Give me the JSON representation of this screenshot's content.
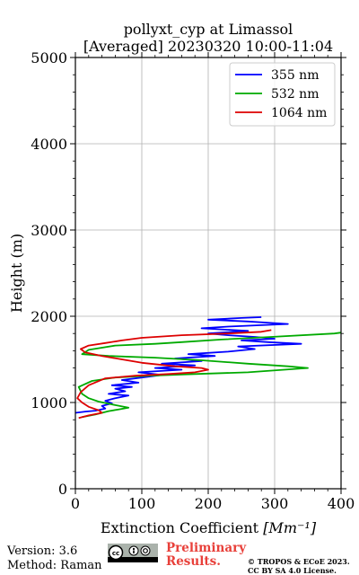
{
  "chart_data": {
    "type": "line",
    "title": "pollyxt_cyp at Limassol",
    "subtitle": "[Averaged] 20230320 10:00-11:04",
    "xlabel": "Extinction Coefficient",
    "xlabel_unit": "[Mm⁻¹]",
    "ylabel": "Height (m)",
    "xlim": [
      0,
      400
    ],
    "ylim": [
      0,
      5000
    ],
    "x_ticks": [
      "0",
      "100",
      "200",
      "300",
      "400"
    ],
    "y_ticks": [
      "0",
      "1000",
      "2000",
      "3000",
      "4000",
      "5000"
    ],
    "grid": true,
    "legend_position": "top-right",
    "series": [
      {
        "name": "355 nm",
        "color": "#0000ff",
        "points": [
          [
            0,
            880
          ],
          [
            15,
            895
          ],
          [
            30,
            905
          ],
          [
            45,
            930
          ],
          [
            40,
            960
          ],
          [
            55,
            990
          ],
          [
            45,
            1020
          ],
          [
            60,
            1050
          ],
          [
            80,
            1080
          ],
          [
            50,
            1100
          ],
          [
            75,
            1130
          ],
          [
            60,
            1160
          ],
          [
            85,
            1180
          ],
          [
            55,
            1200
          ],
          [
            95,
            1230
          ],
          [
            70,
            1260
          ],
          [
            100,
            1290
          ],
          [
            130,
            1320
          ],
          [
            95,
            1350
          ],
          [
            160,
            1380
          ],
          [
            120,
            1400
          ],
          [
            180,
            1430
          ],
          [
            130,
            1450
          ],
          [
            190,
            1480
          ],
          [
            150,
            1510
          ],
          [
            210,
            1540
          ],
          [
            170,
            1560
          ],
          [
            230,
            1590
          ],
          [
            270,
            1620
          ],
          [
            245,
            1650
          ],
          [
            340,
            1680
          ],
          [
            290,
            1700
          ],
          [
            250,
            1720
          ],
          [
            300,
            1740
          ],
          [
            270,
            1760
          ],
          [
            230,
            1780
          ],
          [
            200,
            1800
          ],
          [
            260,
            1830
          ],
          [
            190,
            1860
          ],
          [
            230,
            1880
          ],
          [
            320,
            1910
          ],
          [
            260,
            1940
          ],
          [
            200,
            1960
          ],
          [
            250,
            1980
          ],
          [
            280,
            1990
          ]
        ]
      },
      {
        "name": "532 nm",
        "color": "#00aa00",
        "points": [
          [
            10,
            830
          ],
          [
            30,
            860
          ],
          [
            50,
            900
          ],
          [
            65,
            920
          ],
          [
            80,
            940
          ],
          [
            60,
            970
          ],
          [
            35,
            1010
          ],
          [
            20,
            1050
          ],
          [
            10,
            1100
          ],
          [
            5,
            1180
          ],
          [
            25,
            1250
          ],
          [
            60,
            1290
          ],
          [
            110,
            1310
          ],
          [
            180,
            1330
          ],
          [
            260,
            1350
          ],
          [
            350,
            1400
          ],
          [
            320,
            1420
          ],
          [
            260,
            1450
          ],
          [
            190,
            1490
          ],
          [
            120,
            1520
          ],
          [
            50,
            1540
          ],
          [
            10,
            1560
          ],
          [
            20,
            1610
          ],
          [
            60,
            1660
          ],
          [
            120,
            1680
          ],
          [
            160,
            1700
          ],
          [
            220,
            1730
          ],
          [
            295,
            1760
          ],
          [
            390,
            1800
          ],
          [
            400,
            1810
          ]
        ]
      },
      {
        "name": "1064 nm",
        "color": "#dd0000",
        "points": [
          [
            5,
            820
          ],
          [
            20,
            850
          ],
          [
            40,
            880
          ],
          [
            35,
            910
          ],
          [
            20,
            950
          ],
          [
            10,
            1000
          ],
          [
            3,
            1050
          ],
          [
            8,
            1120
          ],
          [
            20,
            1200
          ],
          [
            45,
            1280
          ],
          [
            90,
            1310
          ],
          [
            140,
            1330
          ],
          [
            180,
            1350
          ],
          [
            200,
            1380
          ],
          [
            190,
            1400
          ],
          [
            150,
            1420
          ],
          [
            100,
            1460
          ],
          [
            70,
            1500
          ],
          [
            40,
            1540
          ],
          [
            15,
            1580
          ],
          [
            8,
            1620
          ],
          [
            20,
            1660
          ],
          [
            45,
            1690
          ],
          [
            70,
            1720
          ],
          [
            100,
            1750
          ],
          [
            160,
            1780
          ],
          [
            230,
            1800
          ],
          [
            280,
            1820
          ],
          [
            295,
            1840
          ]
        ]
      }
    ]
  },
  "footer": {
    "version": "Version: 3.6",
    "method": "Method: Raman",
    "preliminary_line1": "Preliminary",
    "preliminary_line2": "Results.",
    "copyright_line1": "© TROPOS & ECoE 2023.",
    "copyright_line2": "CC BY SA 4.0 License.",
    "license_badge": "cc-by-sa-badge"
  }
}
